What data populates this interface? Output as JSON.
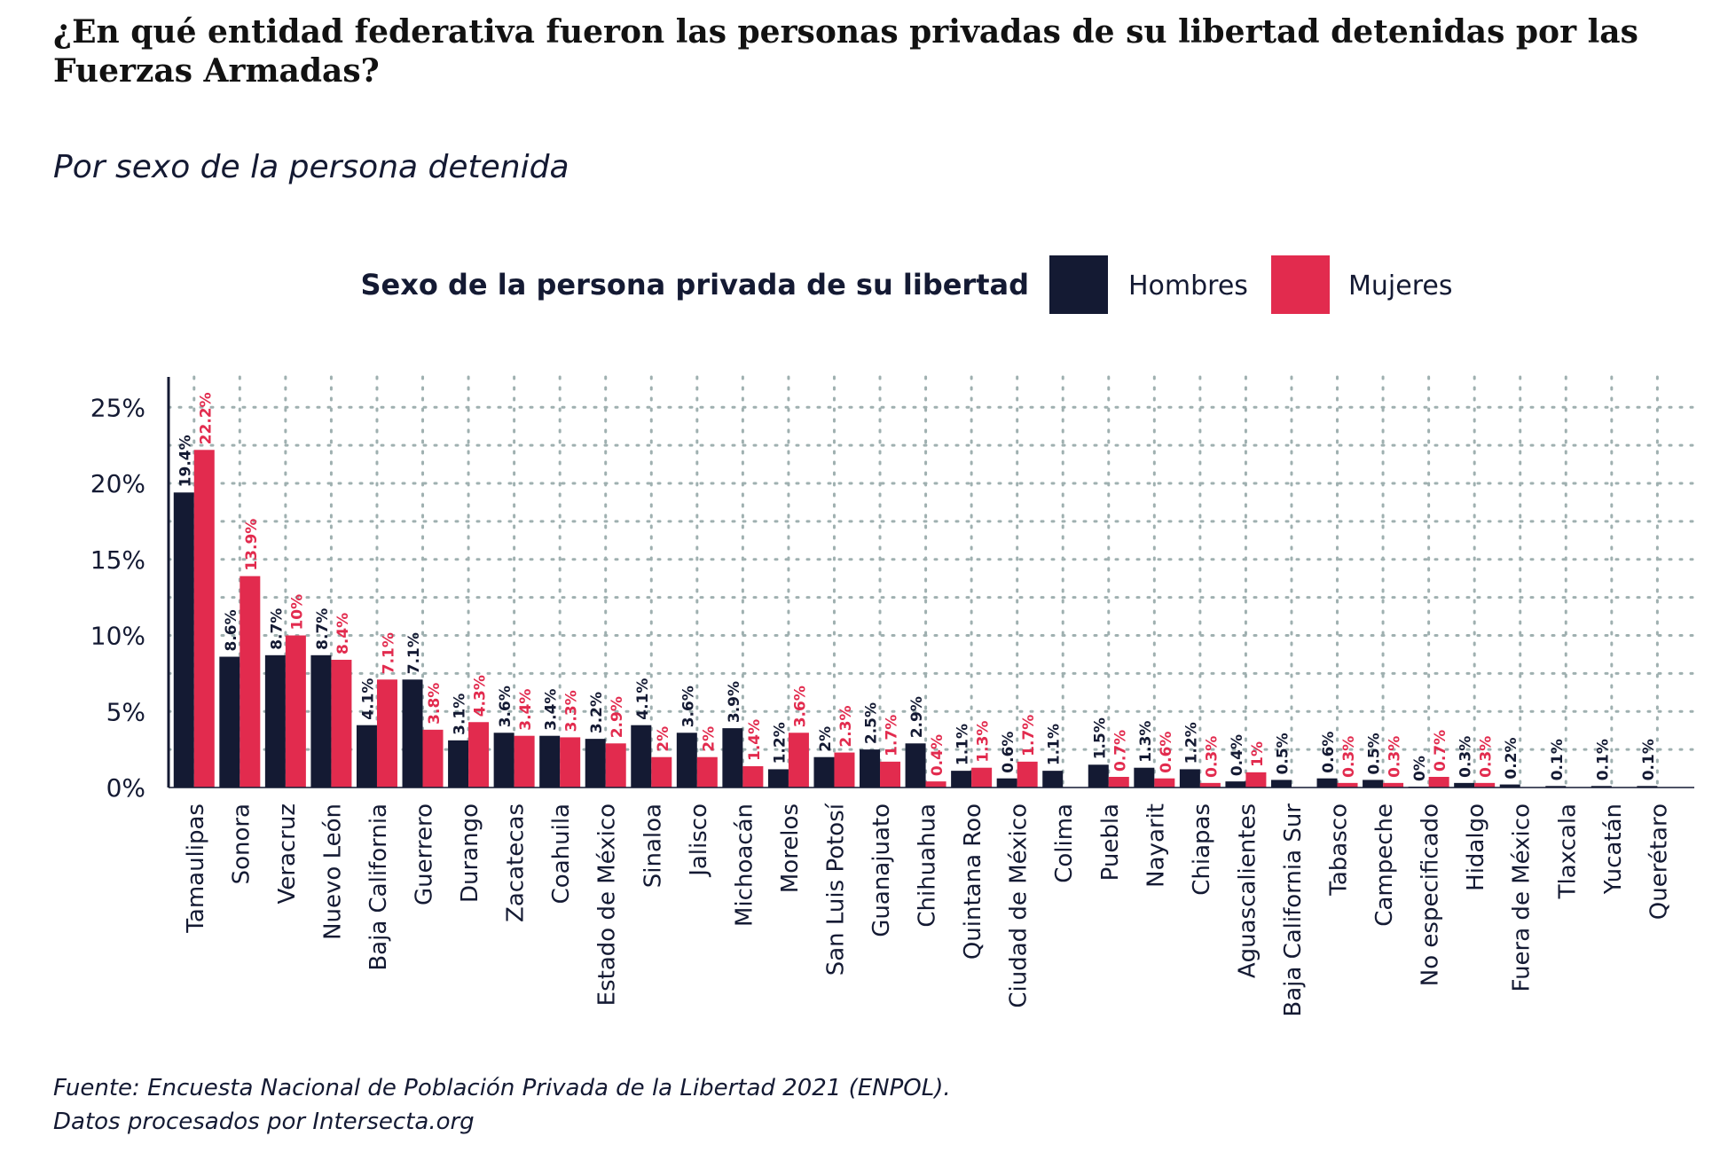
{
  "chart_data": {
    "type": "bar",
    "title": "¿En qué entidad federativa fueron las personas privadas de su libertad detenidas por las Fuerzas Armadas?",
    "subtitle": "Por sexo de la persona detenida",
    "caption_lines": [
      "Fuente: Encuesta Nacional de Población Privada de la Libertad 2021 (ENPOL).",
      "Datos procesados por Intersecta.org"
    ],
    "legend_title": "Sexo de la persona privada de su libertad",
    "legend_position": "top-center",
    "xlabel": "",
    "ylabel": "",
    "ylim": [
      0,
      27
    ],
    "yticks": [
      0,
      5,
      10,
      15,
      20,
      25
    ],
    "ytick_labels": [
      "0%",
      "5%",
      "10%",
      "15%",
      "20%",
      "25%"
    ],
    "grid": true,
    "categories": [
      "Tamaulipas",
      "Sonora",
      "Veracruz",
      "Nuevo León",
      "Baja California",
      "Guerrero",
      "Durango",
      "Zacatecas",
      "Coahuila",
      "Estado de México",
      "Sinaloa",
      "Jalisco",
      "Michoacán",
      "Morelos",
      "San Luis Potosí",
      "Guanajuato",
      "Chihuahua",
      "Quintana Roo",
      "Ciudad de México",
      "Colima",
      "Puebla",
      "Nayarit",
      "Chiapas",
      "Aguascalientes",
      "Baja California Sur",
      "Tabasco",
      "Campeche",
      "No especificado",
      "Hidalgo",
      "Fuera de México",
      "Tlaxcala",
      "Yucatán",
      "Querétaro"
    ],
    "series": [
      {
        "name": "Hombres",
        "color": "#141a33",
        "values": [
          19.4,
          8.6,
          8.7,
          8.7,
          4.1,
          7.1,
          3.1,
          3.6,
          3.4,
          3.2,
          4.1,
          3.6,
          3.9,
          1.2,
          2,
          2.5,
          2.9,
          1.1,
          0.6,
          1.1,
          1.5,
          1.3,
          1.2,
          0.4,
          0.5,
          0.6,
          0.5,
          0,
          0.3,
          0.2,
          0.1,
          0.1,
          0.1
        ],
        "labels": [
          "19.4%",
          "8.6%",
          "8.7%",
          "8.7%",
          "4.1%",
          "7.1%",
          "3.1%",
          "3.6%",
          "3.4%",
          "3.2%",
          "4.1%",
          "3.6%",
          "3.9%",
          "1.2%",
          "2%",
          "2.5%",
          "2.9%",
          "1.1%",
          "0.6%",
          "1.1%",
          "1.5%",
          "1.3%",
          "1.2%",
          "0.4%",
          "0.5%",
          "0.6%",
          "0.5%",
          "0%",
          "0.3%",
          "0.2%",
          "0.1%",
          "0.1%",
          "0.1%"
        ]
      },
      {
        "name": "Mujeres",
        "color": "#e22b4e",
        "values": [
          22.2,
          13.9,
          10,
          8.4,
          7.1,
          3.8,
          4.3,
          3.4,
          3.3,
          2.9,
          2,
          2,
          1.4,
          3.6,
          2.3,
          1.7,
          0.4,
          1.3,
          1.7,
          null,
          0.7,
          0.6,
          0.3,
          1,
          null,
          0.3,
          0.3,
          0.7,
          0.3,
          null,
          null,
          null,
          null
        ],
        "labels": [
          "22.2%",
          "13.9%",
          "10%",
          "8.4%",
          "7.1%",
          "3.8%",
          "4.3%",
          "3.4%",
          "3.3%",
          "2.9%",
          "2%",
          "2%",
          "1.4%",
          "3.6%",
          "2.3%",
          "1.7%",
          "0.4%",
          "1.3%",
          "1.7%",
          null,
          "0.7%",
          "0.6%",
          "0.3%",
          "1%",
          null,
          "0.3%",
          "0.3%",
          "0.7%",
          "0.3%",
          null,
          null,
          null,
          null
        ]
      }
    ]
  }
}
